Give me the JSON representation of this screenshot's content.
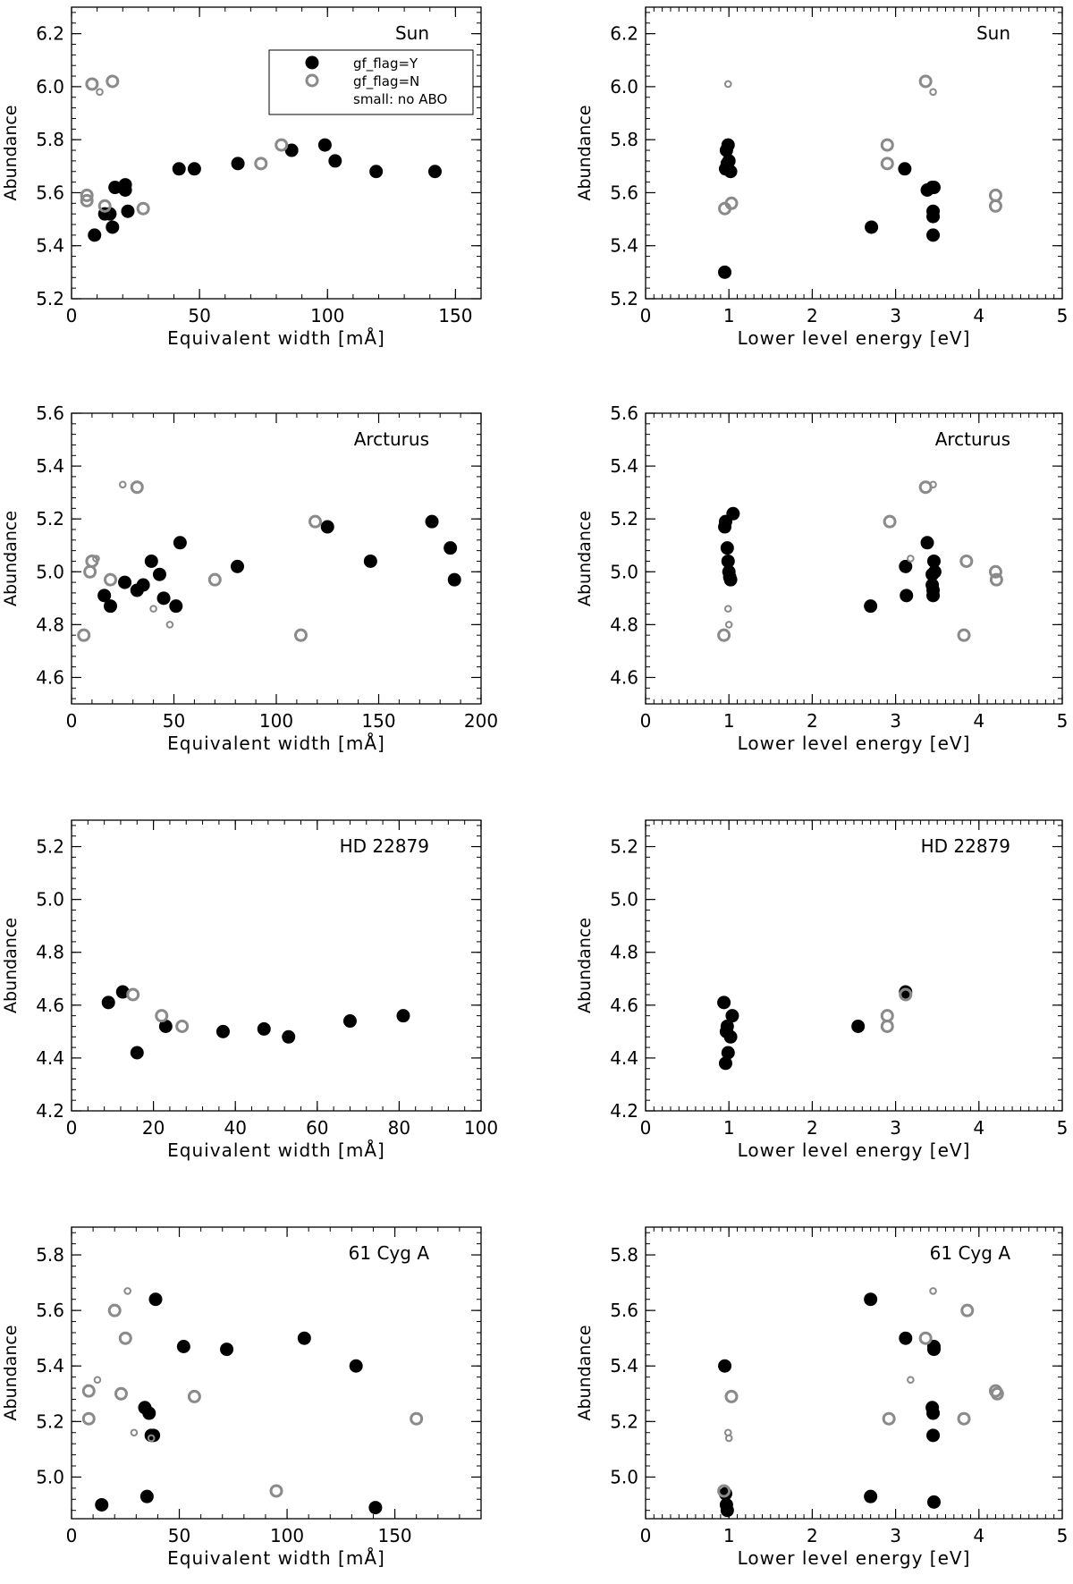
{
  "chart_data": [
    {
      "type": "scatter",
      "star": "Sun",
      "panel": "equivalent-width",
      "xlabel": "Equivalent width [mÅ]",
      "ylabel": "Abundance",
      "xlim": [
        0,
        160
      ],
      "ylim": [
        5.2,
        6.3
      ],
      "xticks": [
        0,
        50,
        100,
        150
      ],
      "yticks": [
        5.2,
        5.4,
        5.6,
        5.8,
        6.0,
        6.2
      ],
      "legend": {
        "entries": [
          "gf_flag=Y",
          "gf_flag=N",
          "small: no ABO"
        ],
        "placement": "top-right"
      },
      "series": [
        {
          "name": "gf_flag=Y",
          "size": "large",
          "x": [
            9,
            13,
            15,
            16,
            17,
            21,
            21,
            22,
            42,
            48,
            65,
            86,
            99,
            103,
            119,
            142
          ],
          "y": [
            5.44,
            5.52,
            5.52,
            5.47,
            5.62,
            5.63,
            5.61,
            5.53,
            5.69,
            5.69,
            5.71,
            5.76,
            5.78,
            5.72,
            5.68,
            5.68
          ]
        },
        {
          "name": "gf_flag=N",
          "size": "large",
          "x": [
            6,
            6,
            13,
            28,
            74,
            82,
            16,
            8
          ],
          "y": [
            5.59,
            5.57,
            5.55,
            5.54,
            5.71,
            5.78,
            6.02,
            6.01
          ]
        },
        {
          "name": "gf_flag=N",
          "size": "small",
          "x": [
            11
          ],
          "y": [
            5.98
          ]
        }
      ]
    },
    {
      "type": "scatter",
      "star": "Sun",
      "panel": "lower-level-energy",
      "xlabel": "Lower level energy [eV]",
      "ylabel": "Abundance",
      "xlim": [
        0,
        5
      ],
      "ylim": [
        5.2,
        6.3
      ],
      "xticks": [
        0,
        1,
        2,
        3,
        4,
        5
      ],
      "yticks": [
        5.2,
        5.4,
        5.6,
        5.8,
        6.0,
        6.2
      ],
      "series": [
        {
          "name": "gf_flag=Y",
          "size": "large",
          "x": [
            0.95,
            0.96,
            0.97,
            0.98,
            0.99,
            1.0,
            1.02,
            2.71,
            3.11,
            3.38,
            3.44,
            3.45,
            3.45,
            3.46,
            3.45
          ],
          "y": [
            5.3,
            5.69,
            5.76,
            5.71,
            5.78,
            5.72,
            5.68,
            5.47,
            5.69,
            5.61,
            5.62,
            5.53,
            5.51,
            5.62,
            5.44
          ]
        },
        {
          "name": "gf_flag=N",
          "size": "large",
          "x": [
            0.95,
            1.03,
            2.9,
            2.9,
            3.36,
            4.2,
            4.2
          ],
          "y": [
            5.54,
            5.56,
            5.78,
            5.71,
            6.02,
            5.59,
            5.55
          ]
        },
        {
          "name": "gf_flag=N",
          "size": "small",
          "x": [
            0.99,
            3.45
          ],
          "y": [
            6.01,
            5.98
          ]
        }
      ]
    },
    {
      "type": "scatter",
      "star": "Arcturus",
      "panel": "equivalent-width",
      "xlabel": "Equivalent width [mÅ]",
      "ylabel": "Abundance",
      "xlim": [
        0,
        200
      ],
      "ylim": [
        4.5,
        5.6
      ],
      "xticks": [
        0,
        50,
        100,
        150,
        200
      ],
      "yticks": [
        4.6,
        4.8,
        5.0,
        5.2,
        5.4,
        5.6
      ],
      "series": [
        {
          "name": "gf_flag=Y",
          "size": "large",
          "x": [
            16,
            19,
            26,
            32,
            35,
            39,
            43,
            45,
            51,
            53,
            81,
            125,
            146,
            176,
            185,
            187
          ],
          "y": [
            4.91,
            4.87,
            4.96,
            4.93,
            4.95,
            5.04,
            4.99,
            4.9,
            4.87,
            5.11,
            5.02,
            5.17,
            5.04,
            5.19,
            5.09,
            4.97
          ]
        },
        {
          "name": "gf_flag=N",
          "size": "large",
          "x": [
            6,
            9,
            10,
            19,
            32,
            70,
            112,
            119
          ],
          "y": [
            4.76,
            5.0,
            5.04,
            4.97,
            5.32,
            4.97,
            4.76,
            5.19
          ]
        },
        {
          "name": "gf_flag=N",
          "size": "small",
          "x": [
            12,
            25,
            40,
            48
          ],
          "y": [
            5.05,
            5.33,
            4.86,
            4.8
          ]
        }
      ]
    },
    {
      "type": "scatter",
      "star": "Arcturus",
      "panel": "lower-level-energy",
      "xlabel": "Lower level energy [eV]",
      "ylabel": "Abundance",
      "xlim": [
        0,
        5
      ],
      "ylim": [
        4.5,
        5.6
      ],
      "xticks": [
        0,
        1,
        2,
        3,
        4,
        5
      ],
      "yticks": [
        4.6,
        4.8,
        5.0,
        5.2,
        5.4,
        5.6
      ],
      "series": [
        {
          "name": "gf_flag=Y",
          "size": "large",
          "x": [
            0.95,
            0.96,
            0.98,
            0.99,
            1.0,
            1.01,
            1.02,
            1.05,
            2.7,
            3.12,
            3.13,
            3.38,
            3.44,
            3.44,
            3.45,
            3.45,
            3.46,
            3.47
          ],
          "y": [
            5.17,
            5.19,
            5.09,
            5.04,
            5.0,
            4.98,
            4.97,
            5.22,
            4.87,
            5.02,
            4.91,
            5.11,
            4.99,
            4.95,
            4.93,
            4.91,
            5.04,
            5.0
          ]
        },
        {
          "name": "gf_flag=N",
          "size": "large",
          "x": [
            0.94,
            2.93,
            3.36,
            3.85,
            3.82,
            4.2,
            4.21
          ],
          "y": [
            4.76,
            5.19,
            5.32,
            5.04,
            4.76,
            5.0,
            4.97
          ]
        },
        {
          "name": "gf_flag=N",
          "size": "small",
          "x": [
            0.99,
            1.0,
            3.18,
            3.45
          ],
          "y": [
            4.86,
            4.8,
            5.05,
            5.33
          ]
        }
      ]
    },
    {
      "type": "scatter",
      "star": "HD 22879",
      "panel": "equivalent-width",
      "xlabel": "Equivalent width [mÅ]",
      "ylabel": "Abundance",
      "xlim": [
        0,
        100
      ],
      "ylim": [
        4.2,
        5.3
      ],
      "xticks": [
        0,
        20,
        40,
        60,
        80,
        100
      ],
      "yticks": [
        4.2,
        4.4,
        4.6,
        4.8,
        5.0,
        5.2
      ],
      "series": [
        {
          "name": "gf_flag=Y",
          "size": "large",
          "x": [
            9,
            12.5,
            16,
            23,
            37,
            47,
            53,
            68,
            81
          ],
          "y": [
            4.61,
            4.65,
            4.42,
            4.52,
            4.5,
            4.51,
            4.48,
            4.54,
            4.56
          ]
        },
        {
          "name": "gf_flag=N",
          "size": "large",
          "x": [
            15,
            22,
            27
          ],
          "y": [
            4.64,
            4.56,
            4.52
          ]
        }
      ]
    },
    {
      "type": "scatter",
      "star": "HD 22879",
      "panel": "lower-level-energy",
      "xlabel": "Lower level energy [eV]",
      "ylabel": "Abundance",
      "xlim": [
        0,
        5
      ],
      "ylim": [
        4.2,
        5.3
      ],
      "xticks": [
        0,
        1,
        2,
        3,
        4,
        5
      ],
      "yticks": [
        4.2,
        4.4,
        4.6,
        4.8,
        5.0,
        5.2
      ],
      "series": [
        {
          "name": "gf_flag=Y",
          "size": "large",
          "x": [
            0.94,
            0.96,
            0.97,
            0.98,
            0.99,
            1.02,
            1.04,
            2.55,
            3.12
          ],
          "y": [
            4.61,
            4.38,
            4.5,
            4.52,
            4.42,
            4.48,
            4.56,
            4.52,
            4.65
          ]
        },
        {
          "name": "gf_flag=N",
          "size": "large",
          "x": [
            2.9,
            2.9,
            3.12
          ],
          "y": [
            4.56,
            4.52,
            4.64
          ]
        }
      ]
    },
    {
      "type": "scatter",
      "star": "61 Cyg A",
      "panel": "equivalent-width",
      "xlabel": "Equivalent width [mÅ]",
      "ylabel": "Abundance",
      "xlim": [
        0,
        190
      ],
      "ylim": [
        4.85,
        5.9
      ],
      "xticks": [
        0,
        50,
        100,
        150
      ],
      "yticks": [
        5.0,
        5.2,
        5.4,
        5.6,
        5.8
      ],
      "series": [
        {
          "name": "gf_flag=Y",
          "size": "large",
          "x": [
            14,
            34,
            36,
            37,
            38,
            39,
            52,
            72,
            108,
            132,
            35,
            141
          ],
          "y": [
            4.9,
            5.25,
            5.23,
            5.15,
            5.15,
            5.64,
            5.47,
            5.46,
            5.5,
            5.4,
            4.93,
            4.89
          ]
        },
        {
          "name": "gf_flag=N",
          "size": "large",
          "x": [
            8,
            8,
            20,
            23,
            25,
            57,
            95,
            160
          ],
          "y": [
            5.31,
            5.21,
            5.6,
            5.3,
            5.5,
            5.29,
            4.95,
            5.21
          ]
        },
        {
          "name": "gf_flag=N",
          "size": "small",
          "x": [
            12,
            26,
            29,
            37
          ],
          "y": [
            5.35,
            5.67,
            5.16,
            5.14
          ]
        }
      ]
    },
    {
      "type": "scatter",
      "star": "61 Cyg A",
      "panel": "lower-level-energy",
      "xlabel": "Lower level energy [eV]",
      "ylabel": "Abundance",
      "xlim": [
        0,
        5
      ],
      "ylim": [
        4.85,
        5.9
      ],
      "xticks": [
        0,
        1,
        2,
        3,
        4,
        5
      ],
      "yticks": [
        5.0,
        5.2,
        5.4,
        5.6,
        5.8
      ],
      "series": [
        {
          "name": "gf_flag=Y",
          "size": "large",
          "x": [
            0.95,
            0.96,
            0.97,
            0.98,
            2.7,
            2.7,
            3.12,
            3.44,
            3.45,
            3.45,
            3.46,
            3.46,
            3.46
          ],
          "y": [
            5.4,
            4.94,
            4.9,
            4.88,
            5.64,
            4.93,
            5.5,
            5.25,
            5.23,
            5.15,
            5.47,
            5.46,
            4.91
          ]
        },
        {
          "name": "gf_flag=N",
          "size": "large",
          "x": [
            0.94,
            1.03,
            2.92,
            3.36,
            3.82,
            3.86,
            4.2,
            4.22
          ],
          "y": [
            4.95,
            5.29,
            5.21,
            5.5,
            5.21,
            5.6,
            5.31,
            5.3
          ]
        },
        {
          "name": "gf_flag=N",
          "size": "small",
          "x": [
            0.99,
            1.0,
            3.18,
            3.45
          ],
          "y": [
            5.16,
            5.14,
            5.35,
            5.67
          ]
        }
      ]
    }
  ]
}
